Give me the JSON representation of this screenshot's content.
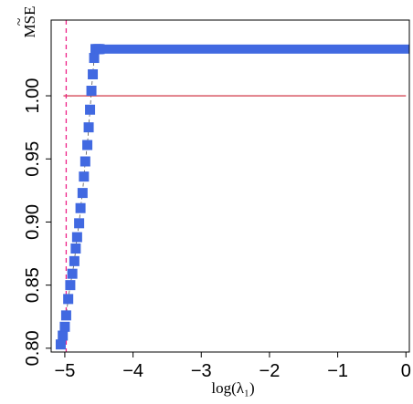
{
  "chart_data": {
    "type": "scatter",
    "xlabel": "log(λ₁)",
    "ylabel": "MSE",
    "ylabel_decoration": "~",
    "xlim": [
      -5.2,
      0.05
    ],
    "ylim": [
      0.797,
      1.06
    ],
    "x_ticks": [
      -5,
      -4,
      -3,
      -2,
      -1,
      0
    ],
    "x_tick_labels": [
      "−5",
      "−4",
      "−3",
      "−2",
      "−1",
      "0"
    ],
    "y_ticks": [
      0.8,
      0.85,
      0.9,
      0.95,
      1.0
    ],
    "y_tick_labels": [
      "0.80",
      "0.85",
      "0.90",
      "0.95",
      "1.00"
    ],
    "reference_lines": [
      {
        "orientation": "horizontal",
        "value": 1.0,
        "style": "solid",
        "color": "#cc2233"
      },
      {
        "orientation": "vertical",
        "value": -4.98,
        "style": "dashed",
        "color": "#ee2288"
      }
    ],
    "series": [
      {
        "marker": "square",
        "color": "#4169e1",
        "x": [
          -5.06,
          -5.03,
          -5.0,
          -4.98,
          -4.95,
          -4.92,
          -4.89,
          -4.86,
          -4.84,
          -4.82,
          -4.79,
          -4.77,
          -4.74,
          -4.72,
          -4.7,
          -4.67,
          -4.65,
          -4.63,
          -4.61,
          -4.59,
          -4.57,
          -4.55,
          -4.53,
          -4.51,
          -4.49
        ],
        "y": [
          0.803,
          0.81,
          0.817,
          0.826,
          0.839,
          0.85,
          0.859,
          0.869,
          0.879,
          0.888,
          0.899,
          0.911,
          0.923,
          0.936,
          0.948,
          0.961,
          0.975,
          0.989,
          1.004,
          1.017,
          1.03,
          1.037,
          1.037,
          1.037,
          1.037
        ]
      }
    ],
    "plateau": {
      "x_start": -4.49,
      "x_end": 0.05,
      "y": 1.037
    }
  }
}
